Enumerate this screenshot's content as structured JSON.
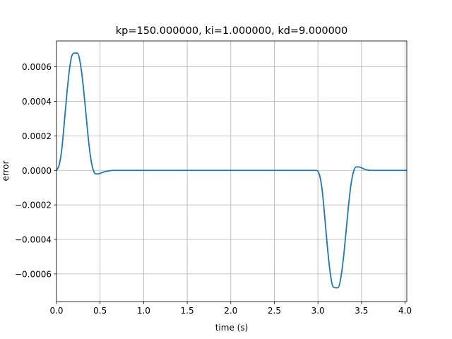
{
  "chart_data": {
    "type": "line",
    "title": "kp=150.000000, ki=1.000000, kd=9.000000",
    "xlabel": "time (s)",
    "ylabel": "error",
    "xlim": [
      0.0,
      4.02
    ],
    "ylim": [
      -0.00076,
      0.00075
    ],
    "grid": true,
    "x_ticks": [
      0.0,
      0.5,
      1.0,
      1.5,
      2.0,
      2.5,
      3.0,
      3.5,
      4.0
    ],
    "x_tick_labels": [
      "0.0",
      "0.5",
      "1.0",
      "1.5",
      "2.0",
      "2.5",
      "3.0",
      "3.5",
      "4.0"
    ],
    "y_ticks": [
      -0.0006,
      -0.0004,
      -0.0002,
      0.0,
      0.0002,
      0.0004,
      0.0006
    ],
    "y_tick_labels": [
      "−0.0006",
      "−0.0004",
      "−0.0002",
      "0.0000",
      "0.0002",
      "0.0004",
      "0.0006"
    ],
    "series": [
      {
        "color": "#1f77b4",
        "x": [
          0.0,
          0.03,
          0.06,
          0.09,
          0.12,
          0.15,
          0.18,
          0.21,
          0.24,
          0.27,
          0.3,
          0.33,
          0.36,
          0.39,
          0.42,
          0.45,
          0.48,
          0.51,
          0.55,
          0.6,
          0.65,
          0.7,
          1.0,
          2.0,
          2.9,
          2.98,
          3.02,
          3.05,
          3.08,
          3.11,
          3.14,
          3.17,
          3.2,
          3.23,
          3.26,
          3.29,
          3.32,
          3.35,
          3.38,
          3.41,
          3.44,
          3.47,
          3.5,
          3.53,
          3.56,
          3.6,
          3.65,
          3.7,
          4.02
        ],
        "y": [
          0.0,
          3e-05,
          0.00012,
          0.00028,
          0.00045,
          0.00059,
          0.00067,
          0.00068,
          0.00068,
          0.00063,
          0.00052,
          0.00037,
          0.00021,
          8e-05,
          5e-06,
          -2e-05,
          -2e-05,
          -1.5e-05,
          -8e-06,
          -3e-06,
          0.0,
          0.0,
          0.0,
          0.0,
          0.0,
          0.0,
          -3e-05,
          -0.00012,
          -0.00028,
          -0.00045,
          -0.00059,
          -0.00067,
          -0.00068,
          -0.00068,
          -0.00063,
          -0.00052,
          -0.00037,
          -0.00021,
          -8e-05,
          -5e-06,
          2e-05,
          2e-05,
          1.5e-05,
          8e-06,
          3e-06,
          0.0,
          0.0,
          0.0,
          0.0
        ]
      }
    ]
  }
}
